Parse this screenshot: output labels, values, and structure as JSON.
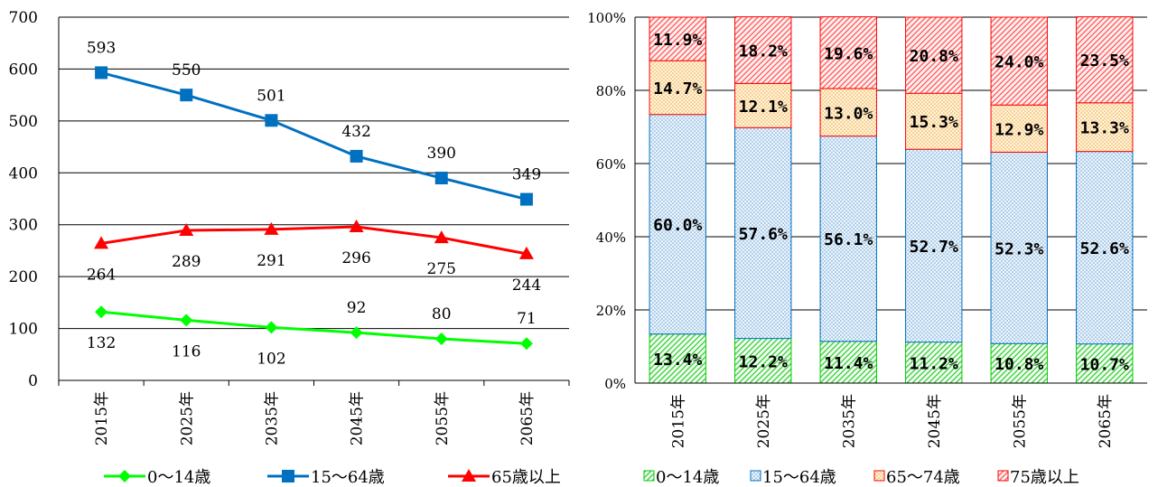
{
  "chart_data": [
    {
      "type": "line",
      "categories": [
        "2015年",
        "2025年",
        "2035年",
        "2045年",
        "2055年",
        "2065年"
      ],
      "ylim": [
        0,
        700
      ],
      "yticks": [
        0,
        100,
        200,
        300,
        400,
        500,
        600,
        700
      ],
      "grid": true,
      "legend_position": "bottom",
      "series": [
        {
          "name": "0〜14歳",
          "values": [
            132,
            116,
            102,
            92,
            80,
            71
          ],
          "color": "#00ff00",
          "marker": "diamond",
          "label_position": [
            "below",
            "below",
            "below",
            "above",
            "above",
            "above"
          ]
        },
        {
          "name": "15〜64歳",
          "values": [
            593,
            550,
            501,
            432,
            390,
            349
          ],
          "color": "#0070c0",
          "marker": "square",
          "label_position": [
            "above",
            "above",
            "above",
            "above",
            "above",
            "above"
          ]
        },
        {
          "name": "65歳以上",
          "values": [
            264,
            289,
            291,
            296,
            275,
            244
          ],
          "color": "#ff0000",
          "marker": "triangle",
          "label_position": [
            "below",
            "below",
            "below",
            "below",
            "below",
            "below"
          ]
        }
      ]
    },
    {
      "type": "bar",
      "stacked": true,
      "percent": true,
      "categories": [
        "2015年",
        "2025年",
        "2035年",
        "2045年",
        "2055年",
        "2065年"
      ],
      "ylim": [
        0,
        100
      ],
      "yticks": [
        "0%",
        "20%",
        "40%",
        "60%",
        "80%",
        "100%"
      ],
      "grid": true,
      "legend_position": "bottom",
      "series": [
        {
          "name": "0〜14歳",
          "values": [
            13.4,
            12.2,
            11.4,
            11.2,
            10.8,
            10.7
          ],
          "labels": [
            "13.4%",
            "12.2%",
            "11.4%",
            "11.2%",
            "10.8%",
            "10.7%"
          ],
          "color": "#00cc00",
          "pattern": "hatch-green"
        },
        {
          "name": "15〜64歳",
          "values": [
            60.0,
            57.6,
            56.1,
            52.7,
            52.3,
            52.6
          ],
          "labels": [
            "60.0%",
            "57.6%",
            "56.1%",
            "52.7%",
            "52.3%",
            "52.6%"
          ],
          "color": "#0070c0",
          "pattern": "dots-blue"
        },
        {
          "name": "65〜74歳",
          "values": [
            14.7,
            12.1,
            13.0,
            15.3,
            12.9,
            13.3
          ],
          "labels": [
            "14.7%",
            "12.1%",
            "13.0%",
            "15.3%",
            "12.9%",
            "13.3%"
          ],
          "color": "#ff0000",
          "pattern": "dots-orange"
        },
        {
          "name": "75歳以上",
          "values": [
            11.9,
            18.2,
            19.6,
            20.8,
            24.0,
            23.5
          ],
          "labels": [
            "11.9%",
            "18.2%",
            "19.6%",
            "20.8%",
            "24.0%",
            "23.5%"
          ],
          "color": "#ff0000",
          "pattern": "hatch-red"
        }
      ]
    }
  ]
}
